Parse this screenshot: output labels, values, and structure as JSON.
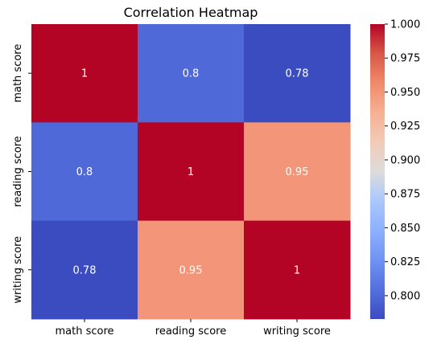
{
  "chart_data": {
    "type": "heatmap",
    "title": "Correlation Heatmap",
    "xlabel": "",
    "ylabel": "",
    "x_categories": [
      "math score",
      "reading score",
      "writing score"
    ],
    "y_categories": [
      "math score",
      "reading score",
      "writing score"
    ],
    "values": [
      [
        1,
        0.8,
        0.78
      ],
      [
        0.8,
        1,
        0.95
      ],
      [
        0.78,
        0.95,
        1
      ]
    ],
    "value_labels": [
      [
        "1",
        "0.8",
        "0.78"
      ],
      [
        "0.8",
        "1",
        "0.95"
      ],
      [
        "0.78",
        "0.95",
        "1"
      ]
    ],
    "colormap": "coolwarm",
    "colorbar": {
      "vmin": 0.7828,
      "vmax": 1.0,
      "ticks": [
        0.8,
        0.825,
        0.85,
        0.875,
        0.9,
        0.925,
        0.95,
        0.975,
        1.0
      ],
      "tick_labels": [
        "0.800",
        "0.825",
        "0.850",
        "0.875",
        "0.900",
        "0.925",
        "0.950",
        "0.975",
        "1.000"
      ]
    },
    "grid": false,
    "annotations_color": "#ffffff"
  }
}
